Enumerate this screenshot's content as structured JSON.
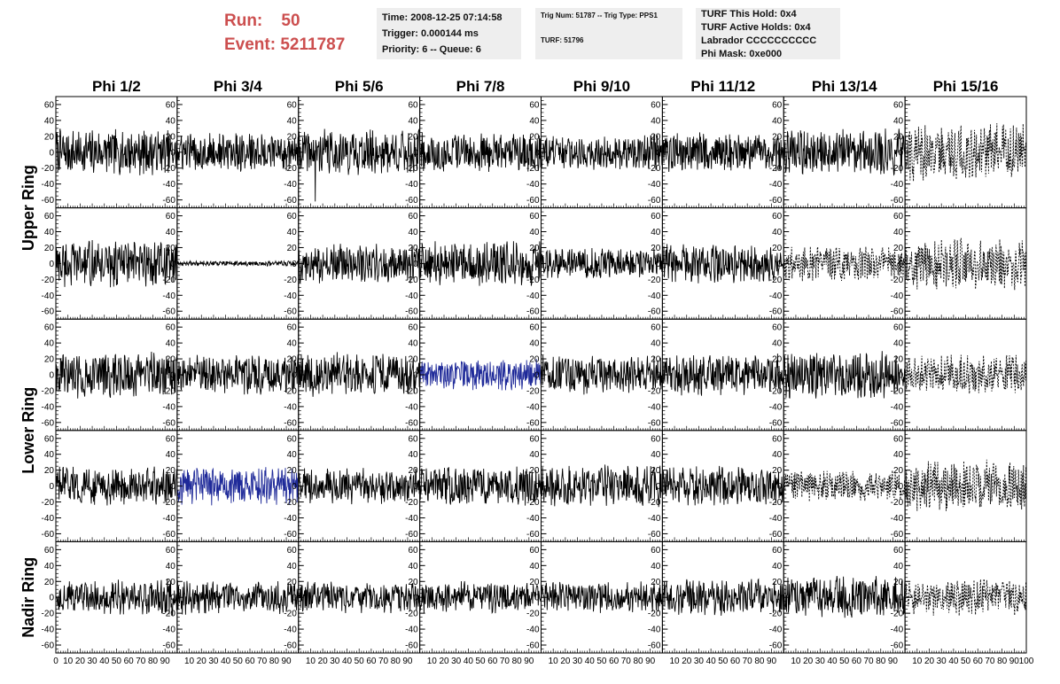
{
  "header": {
    "run_label": "Run:",
    "run_value": "50",
    "event_label": "Event:",
    "event_value": "5211787"
  },
  "info_box_1": {
    "line1": "Time: 2008-12-25 07:14:58",
    "line2": "Trigger: 0.000144 ms",
    "line3": "Priority: 6 -- Queue: 6"
  },
  "info_box_2": {
    "line1": "Trig Num: 51787 -- Trig Type: PPS1",
    "line2": "TURF: 51796"
  },
  "info_box_3": {
    "line1": "TURF This Hold: 0x4",
    "line2": "TURF Active Holds: 0x4",
    "line3": "Labrador CCCCCCCCCC",
    "line4": "Phi Mask: 0xe000"
  },
  "colors": {
    "header_red": "#cc4f4f",
    "trace_black": "#000000",
    "trace_blue": "#1f2a99",
    "info_bg": "#eeeeee"
  },
  "chart_data": {
    "type": "line",
    "columns": [
      "Phi 1/2",
      "Phi 3/4",
      "Phi 5/6",
      "Phi 7/8",
      "Phi 9/10",
      "Phi 11/12",
      "Phi 13/14",
      "Phi 15/16"
    ],
    "rows": [
      "Upper Ring",
      "Upper Ring",
      "Lower Ring",
      "Lower Ring",
      "Nadir Ring"
    ],
    "row_labels": [
      "Upper Ring",
      "Lower Ring",
      "Nadir Ring"
    ],
    "xlim": [
      0,
      100
    ],
    "ylim": [
      -70,
      70
    ],
    "y_ticks": [
      -60,
      -40,
      -20,
      0,
      20,
      40,
      60
    ],
    "x_ticks": [
      0,
      10,
      20,
      30,
      40,
      50,
      60,
      70,
      80,
      90
    ],
    "x_tick_last": 100,
    "panels": [
      [
        {
          "amp": 18,
          "style": "solid"
        },
        {
          "amp": 15,
          "style": "solid"
        },
        {
          "amp": 18,
          "style": "solid",
          "spike": -62
        },
        {
          "amp": 15,
          "style": "solid"
        },
        {
          "amp": 14,
          "style": "solid"
        },
        {
          "amp": 15,
          "style": "solid"
        },
        {
          "amp": 18,
          "style": "solid"
        },
        {
          "amp": 22,
          "style": "dashed"
        }
      ],
      [
        {
          "amp": 18,
          "style": "solid"
        },
        {
          "amp": 2,
          "style": "solid"
        },
        {
          "amp": 15,
          "style": "solid"
        },
        {
          "amp": 17,
          "style": "solid"
        },
        {
          "amp": 12,
          "style": "solid"
        },
        {
          "amp": 15,
          "style": "solid"
        },
        {
          "amp": 14,
          "style": "dashed"
        },
        {
          "amp": 20,
          "style": "dashed"
        }
      ],
      [
        {
          "amp": 18,
          "style": "solid"
        },
        {
          "amp": 15,
          "style": "solid"
        },
        {
          "amp": 17,
          "style": "solid"
        },
        {
          "amp": 12,
          "style": "blue"
        },
        {
          "amp": 15,
          "style": "solid"
        },
        {
          "amp": 16,
          "style": "solid"
        },
        {
          "amp": 18,
          "style": "solid"
        },
        {
          "amp": 15,
          "style": "dashed"
        }
      ],
      [
        {
          "amp": 15,
          "style": "solid"
        },
        {
          "amp": 15,
          "style": "blue"
        },
        {
          "amp": 14,
          "style": "solid"
        },
        {
          "amp": 16,
          "style": "solid"
        },
        {
          "amp": 16,
          "style": "solid"
        },
        {
          "amp": 15,
          "style": "solid"
        },
        {
          "amp": 12,
          "style": "dashed"
        },
        {
          "amp": 20,
          "style": "dashed"
        }
      ],
      [
        {
          "amp": 14,
          "style": "solid"
        },
        {
          "amp": 13,
          "style": "solid"
        },
        {
          "amp": 12,
          "style": "solid"
        },
        {
          "amp": 12,
          "style": "solid"
        },
        {
          "amp": 12,
          "style": "solid"
        },
        {
          "amp": 14,
          "style": "solid"
        },
        {
          "amp": 16,
          "style": "solid"
        },
        {
          "amp": 14,
          "style": "dashed"
        }
      ]
    ]
  }
}
